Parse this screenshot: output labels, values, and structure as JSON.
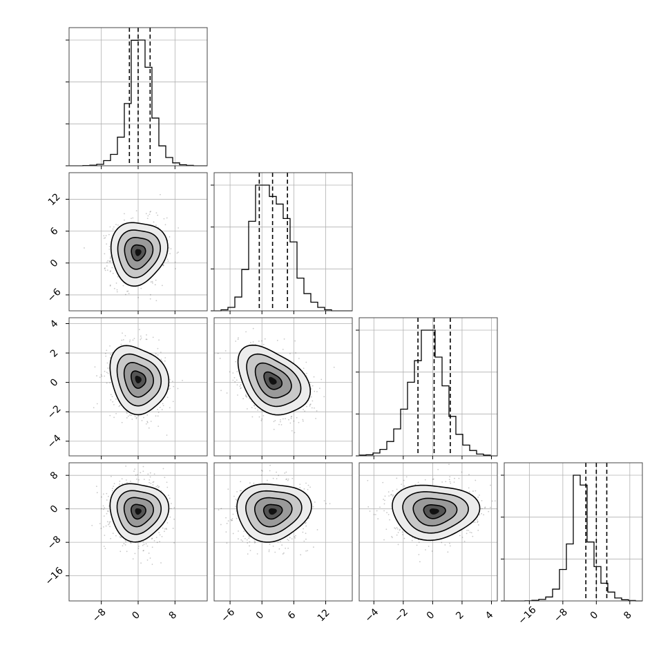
{
  "chart_data": {
    "type": "corner",
    "title": "",
    "grid": true,
    "variables": [
      {
        "index": 0,
        "range": [
          -15,
          15
        ],
        "ticks": [
          -8,
          0,
          8
        ],
        "tick_labels": [
          "−8",
          "0",
          "8"
        ],
        "quantiles": [
          -1.9,
          0.0,
          2.6
        ],
        "median": 0.0
      },
      {
        "index": 1,
        "range": [
          -9,
          17
        ],
        "ticks": [
          -6,
          0,
          6,
          12
        ],
        "tick_labels": [
          "−6",
          "0",
          "6",
          "12"
        ],
        "quantiles": [
          -0.5,
          2.0,
          4.8
        ],
        "median": 2.0
      },
      {
        "index": 2,
        "range": [
          -5,
          4.4
        ],
        "ticks": [
          -4,
          -2,
          0,
          2,
          4
        ],
        "tick_labels": [
          "−4",
          "−2",
          "0",
          "2",
          "4"
        ],
        "quantiles": [
          -1.0,
          0.1,
          1.2
        ],
        "median": 0.1
      },
      {
        "index": 3,
        "range": [
          -22,
          11
        ],
        "ticks": [
          -16,
          -8,
          0,
          8
        ],
        "tick_labels": [
          "−16",
          "−8",
          "0",
          "8"
        ],
        "quantiles": [
          -2.5,
          0.0,
          2.5
        ],
        "median": 0.0
      }
    ],
    "histograms": [
      {
        "variable": 0,
        "bins": 20,
        "range": [
          -15,
          15
        ],
        "counts": [
          0,
          0,
          1,
          3,
          7,
          25,
          55,
          138,
          300,
          605,
          606,
          475,
          230,
          96,
          40,
          14,
          5,
          2,
          0,
          0
        ]
      },
      {
        "variable": 1,
        "bins": 20,
        "range": [
          -9,
          17
        ],
        "counts": [
          0,
          3,
          10,
          40,
          120,
          260,
          365,
          365,
          332,
          310,
          268,
          200,
          95,
          50,
          25,
          10,
          3,
          0,
          0,
          0
        ]
      },
      {
        "variable": 2,
        "bins": 20,
        "range": [
          -5,
          4.4
        ],
        "counts": [
          2,
          3,
          8,
          18,
          40,
          75,
          130,
          205,
          265,
          350,
          350,
          275,
          195,
          110,
          60,
          30,
          15,
          5,
          2,
          0
        ]
      },
      {
        "variable": 3,
        "bins": 20,
        "range": [
          -22,
          11
        ],
        "counts": [
          0,
          0,
          0,
          1,
          3,
          8,
          20,
          60,
          160,
          290,
          640,
          590,
          300,
          175,
          90,
          45,
          15,
          6,
          2,
          0
        ]
      }
    ],
    "pairs": [
      {
        "x_var": 0,
        "y_var": 1,
        "center": [
          0.0,
          2.0
        ],
        "sigma": [
          2.9,
          3.1
        ],
        "rho": 0.05
      },
      {
        "x_var": 0,
        "y_var": 2,
        "center": [
          0.0,
          0.2
        ],
        "sigma": [
          3.0,
          1.2
        ],
        "rho": -0.15
      },
      {
        "x_var": 1,
        "y_var": 2,
        "center": [
          2.0,
          0.1
        ],
        "sigma": [
          3.2,
          1.2
        ],
        "rho": -0.35
      },
      {
        "x_var": 0,
        "y_var": 3,
        "center": [
          0.0,
          -0.6
        ],
        "sigma": [
          3.0,
          3.6
        ],
        "rho": 0.0
      },
      {
        "x_var": 1,
        "y_var": 3,
        "center": [
          2.0,
          -0.6
        ],
        "sigma": [
          3.3,
          3.6
        ],
        "rho": 0.05
      },
      {
        "x_var": 2,
        "y_var": 3,
        "center": [
          0.1,
          -0.6
        ],
        "sigma": [
          1.4,
          3.4
        ],
        "rho": 0.0
      }
    ],
    "contour_levels_sigma": [
      0.5,
      1.0,
      1.5,
      2.0
    ],
    "colors": {
      "line": "#000000",
      "grid": "#b0b0b0",
      "points": "#000000"
    }
  }
}
